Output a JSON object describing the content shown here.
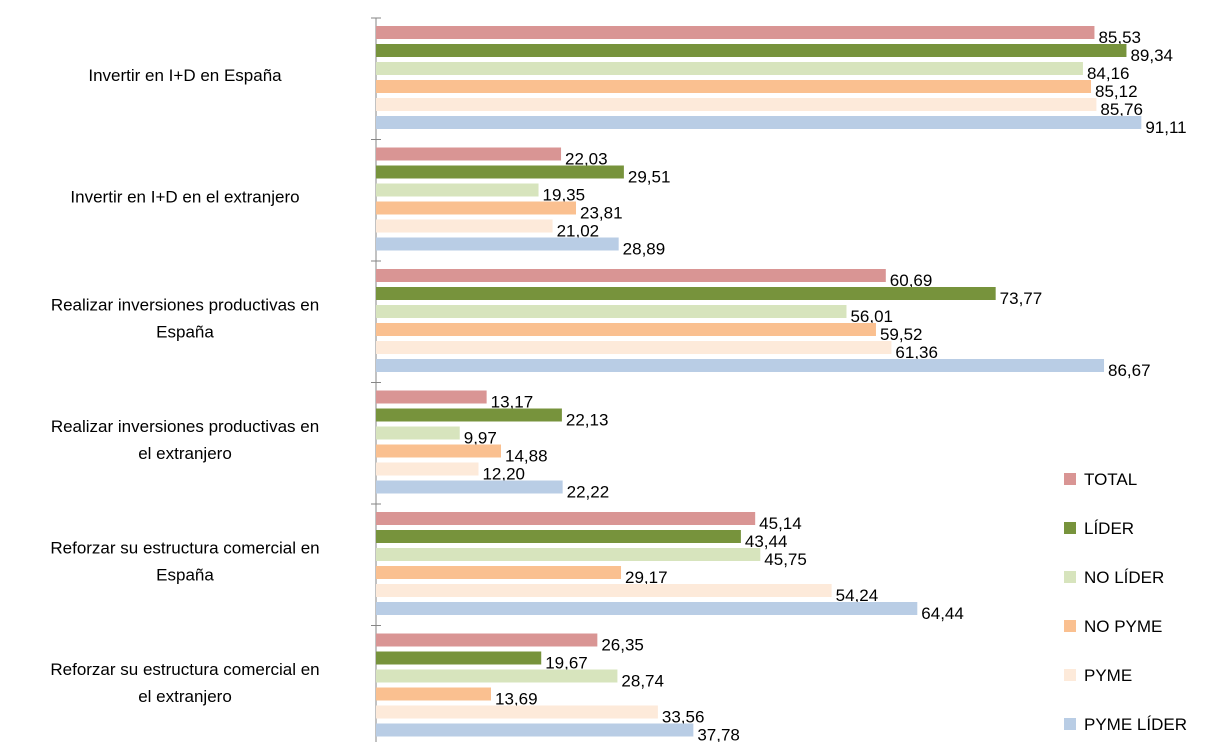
{
  "chart_data": {
    "type": "bar",
    "orientation": "horizontal",
    "title": "",
    "xlabel": "",
    "ylabel": "",
    "xlim": [
      0,
      100
    ],
    "grid": false,
    "legend_position": "right",
    "categories": [
      [
        "Invertir en I+D en España"
      ],
      [
        "Invertir en I+D en el extranjero"
      ],
      [
        "Realizar inversiones productivas en",
        "España"
      ],
      [
        "Realizar inversiones productivas en",
        "el extranjero"
      ],
      [
        "Reforzar su estructura comercial en",
        "España"
      ],
      [
        "Reforzar su estructura comercial en",
        "el extranjero"
      ]
    ],
    "series": [
      {
        "name": "TOTAL",
        "color": "#D99594",
        "values": [
          85.53,
          22.03,
          60.69,
          13.17,
          45.14,
          26.35
        ],
        "labels": [
          "85,53",
          "22,03",
          "60,69",
          "13,17",
          "45,14",
          "26,35"
        ]
      },
      {
        "name": "LÍDER",
        "color": "#77933C",
        "values": [
          89.34,
          29.51,
          73.77,
          22.13,
          43.44,
          19.67
        ],
        "labels": [
          "89,34",
          "29,51",
          "73,77",
          "22,13",
          "43,44",
          "19,67"
        ]
      },
      {
        "name": "NO LÍDER",
        "color": "#D7E4BD",
        "values": [
          84.16,
          19.35,
          56.01,
          9.97,
          45.75,
          28.74
        ],
        "labels": [
          "84,16",
          "19,35",
          "56,01",
          "9,97",
          "45,75",
          "28,74"
        ]
      },
      {
        "name": "NO PYME",
        "color": "#FAC090",
        "values": [
          85.12,
          23.81,
          59.52,
          14.88,
          29.17,
          13.69
        ],
        "labels": [
          "85,12",
          "23,81",
          "59,52",
          "14,88",
          "29,17",
          "13,69"
        ]
      },
      {
        "name": "PYME",
        "color": "#FDEADA",
        "values": [
          85.76,
          21.02,
          61.36,
          12.2,
          54.24,
          33.56
        ],
        "labels": [
          "85,76",
          "21,02",
          "61,36",
          "12,20",
          "54,24",
          "33,56"
        ]
      },
      {
        "name": "PYME LÍDER",
        "color": "#B9CDE5",
        "values": [
          91.11,
          28.89,
          86.67,
          22.22,
          64.44,
          37.78
        ],
        "labels": [
          "91,11",
          "28,89",
          "86,67",
          "22,22",
          "64,44",
          "37,78"
        ]
      }
    ]
  }
}
